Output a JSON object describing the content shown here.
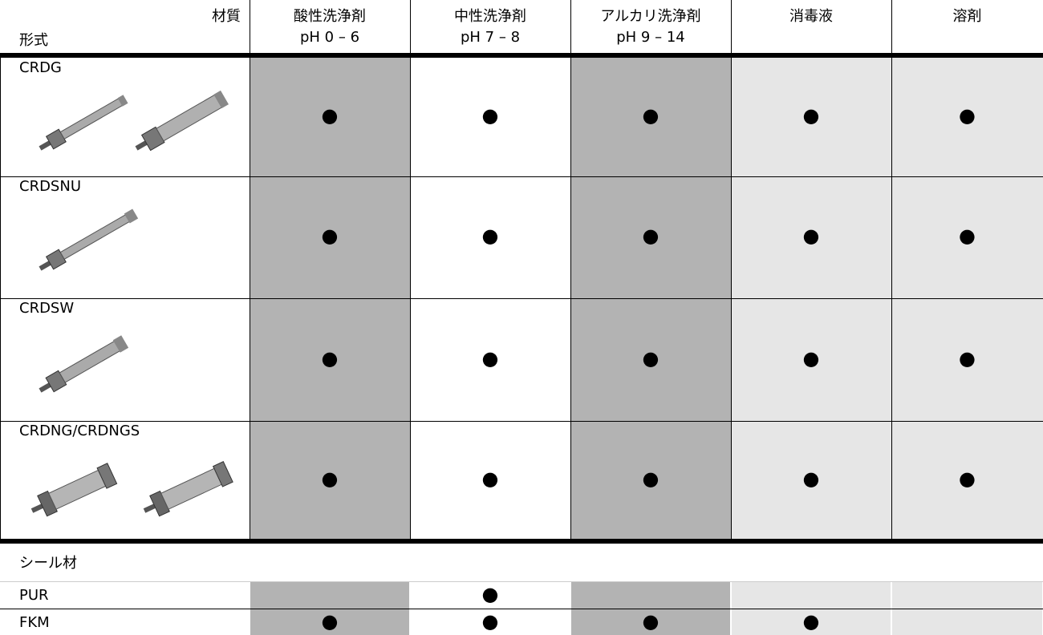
{
  "header": {
    "material_label": "材質",
    "model_label": "形式",
    "columns": [
      {
        "name": "酸性洗浄剤",
        "ph": "pH 0 – 6"
      },
      {
        "name": "中性洗浄剤",
        "ph": "pH 7 – 8"
      },
      {
        "name": "アルカリ洗浄剤",
        "ph": "pH 9 – 14"
      },
      {
        "name": "消毒液"
      },
      {
        "name": "溶剤"
      }
    ]
  },
  "models": [
    {
      "name": "CRDG",
      "marks": [
        "●",
        "●",
        "●",
        "●",
        "●"
      ]
    },
    {
      "name": "CRDSNU",
      "marks": [
        "●",
        "●",
        "●",
        "●",
        "●"
      ]
    },
    {
      "name": "CRDSW",
      "marks": [
        "●",
        "●",
        "●",
        "●",
        "●"
      ]
    },
    {
      "name": "CRDNG/CRDNGS",
      "marks": [
        "●",
        "●",
        "●",
        "●",
        "●"
      ]
    }
  ],
  "seals": {
    "title": "シール材",
    "rows": [
      {
        "name": "PUR",
        "marks": [
          null,
          "●",
          null,
          null,
          null
        ]
      },
      {
        "name": "FKM",
        "marks": [
          "●",
          "●",
          "●",
          "●",
          null
        ]
      }
    ]
  }
}
